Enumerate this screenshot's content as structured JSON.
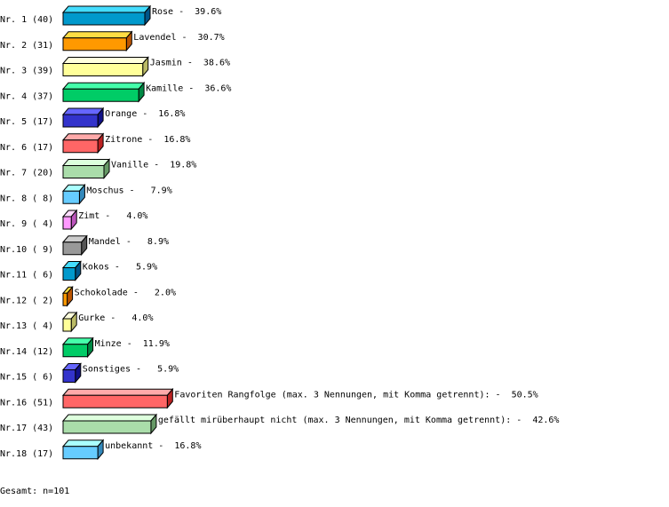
{
  "chart_data": {
    "type": "bar",
    "orientation": "horizontal",
    "style": "3d",
    "grid": false,
    "unit": "%",
    "categories": [
      "Rose",
      "Lavendel",
      "Jasmin",
      "Kamille",
      "Orange",
      "Zitrone",
      "Vanille",
      "Moschus",
      "Zimt",
      "Mandel",
      "Kokos",
      "Schokolade",
      "Gurke",
      "Minze",
      "Sonstiges",
      "Favoriten Rangfolge (max. 3 Nennungen, mit Komma getrennt):",
      "gefällt mirüberhaupt nicht (max. 3 Nennungen, mit Komma getrennt):",
      "unbekannt"
    ],
    "row_labels": [
      "Nr. 1 (40)",
      "Nr. 2 (31)",
      "Nr. 3 (39)",
      "Nr. 4 (37)",
      "Nr. 5 (17)",
      "Nr. 6 (17)",
      "Nr. 7 (20)",
      "Nr. 8 ( 8)",
      "Nr. 9 ( 4)",
      "Nr.10 ( 9)",
      "Nr.11 ( 6)",
      "Nr.12 ( 2)",
      "Nr.13 ( 4)",
      "Nr.14 (12)",
      "Nr.15 ( 6)",
      "Nr.16 (51)",
      "Nr.17 (43)",
      "Nr.18 (17)"
    ],
    "counts": [
      40,
      31,
      39,
      37,
      17,
      17,
      20,
      8,
      4,
      9,
      6,
      2,
      4,
      12,
      6,
      51,
      43,
      17
    ],
    "percent_labels": [
      "39.6%",
      "30.7%",
      "38.6%",
      "36.6%",
      "16.8%",
      "16.8%",
      "19.8%",
      "7.9%",
      "4.0%",
      "8.9%",
      "5.9%",
      "2.0%",
      "4.0%",
      "11.9%",
      "5.9%",
      "50.5%",
      "42.6%",
      "16.8%"
    ],
    "values": [
      39.6,
      30.7,
      38.6,
      36.6,
      16.8,
      16.8,
      19.8,
      7.9,
      4.0,
      8.9,
      5.9,
      2.0,
      4.0,
      11.9,
      5.9,
      50.5,
      42.6,
      16.8
    ],
    "palette": [
      {
        "front": "#0099cc",
        "top": "#44ddff",
        "side": "#005588"
      },
      {
        "front": "#ff9900",
        "top": "#ffdd44",
        "side": "#bb5500"
      },
      {
        "front": "#ffff99",
        "top": "#ffffdd",
        "side": "#bbbb66"
      },
      {
        "front": "#00cc66",
        "top": "#44ffaa",
        "side": "#008844"
      },
      {
        "front": "#3333cc",
        "top": "#6666ff",
        "side": "#111188"
      },
      {
        "front": "#ff6666",
        "top": "#ffaaaa",
        "side": "#bb2222"
      },
      {
        "front": "#aaddaa",
        "top": "#ddffdd",
        "side": "#669966"
      },
      {
        "front": "#66ccff",
        "top": "#aaffff",
        "side": "#3388bb"
      },
      {
        "front": "#ff99ff",
        "top": "#ffddff",
        "side": "#bb55bb"
      },
      {
        "front": "#999999",
        "top": "#cccccc",
        "side": "#555555"
      }
    ]
  },
  "footer": {
    "total": "Gesamt: n=101"
  }
}
